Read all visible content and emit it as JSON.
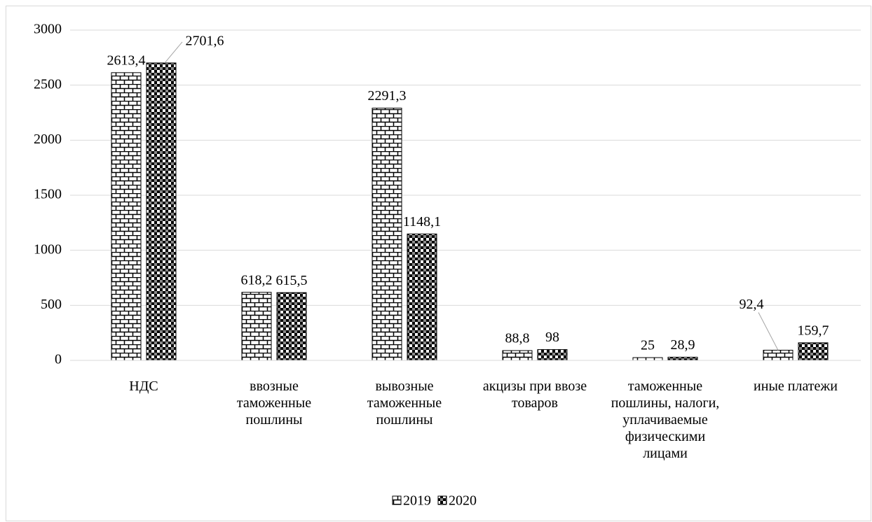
{
  "chart_data": {
    "type": "bar",
    "categories": [
      "НДС",
      "ввозные таможенные пошлины",
      "вывозные таможенные пошлины",
      "акцизы при ввозе товаров",
      "таможенные пошлины, налоги, уплачиваемые физическими лицами",
      "иные платежи"
    ],
    "series": [
      {
        "name": "2019",
        "color": "#000000",
        "pattern": "brick",
        "values": [
          2613.4,
          618.2,
          2291.3,
          88.8,
          25,
          92.4
        ],
        "value_labels": [
          "2613,4",
          "618,2",
          "2291,3",
          "88,8",
          "25",
          "92,4"
        ]
      },
      {
        "name": "2020",
        "color": "#000000",
        "pattern": "checker",
        "values": [
          2701.6,
          615.5,
          1148.1,
          98,
          28.9,
          159.7
        ],
        "value_labels": [
          "2701,6",
          "615,5",
          "1148,1",
          "98",
          "28,9",
          "159,7"
        ]
      }
    ],
    "ylim": [
      0,
      3000
    ],
    "yticks": [
      0,
      500,
      1000,
      1500,
      2000,
      2500,
      3000
    ],
    "grid": true,
    "legend": "bottom"
  }
}
